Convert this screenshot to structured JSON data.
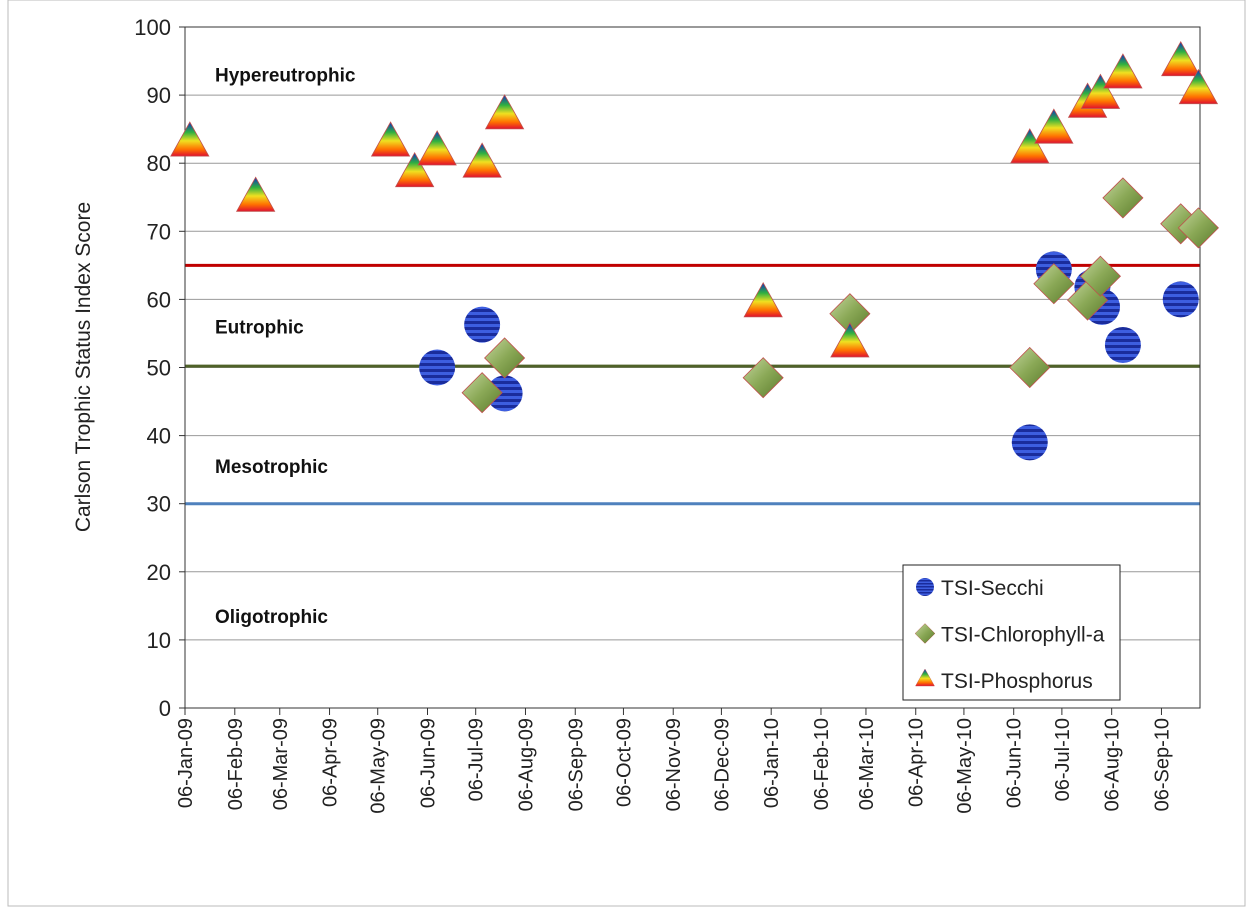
{
  "chart_data": {
    "type": "scatter",
    "y_label": "Carlson Trophic Status Index Score",
    "annotations": [
      {
        "text": "Hypereutrophic",
        "y": 93
      },
      {
        "text": "Eutrophic",
        "y": 56
      },
      {
        "text": "Mesotrophic",
        "y": 35.5
      },
      {
        "text": "Oligotrophic",
        "y": 13.5
      }
    ],
    "reference_lines": [
      {
        "value": 65,
        "color": "#c00000"
      },
      {
        "value": 50.2,
        "color": "#4f6228"
      },
      {
        "value": 30,
        "color": "#4f81bd"
      }
    ],
    "xlim": [
      "2009-01-06",
      "2010-09-30"
    ],
    "xticks": [
      {
        "value": "2009-01-06",
        "label": "06-Jan-09"
      },
      {
        "value": "2009-02-06",
        "label": "06-Feb-09"
      },
      {
        "value": "2009-03-06",
        "label": "06-Mar-09"
      },
      {
        "value": "2009-04-06",
        "label": "06-Apr-09"
      },
      {
        "value": "2009-05-06",
        "label": "06-May-09"
      },
      {
        "value": "2009-06-06",
        "label": "06-Jun-09"
      },
      {
        "value": "2009-07-06",
        "label": "06-Jul-09"
      },
      {
        "value": "2009-08-06",
        "label": "06-Aug-09"
      },
      {
        "value": "2009-09-06",
        "label": "06-Sep-09"
      },
      {
        "value": "2009-10-06",
        "label": "06-Oct-09"
      },
      {
        "value": "2009-11-06",
        "label": "06-Nov-09"
      },
      {
        "value": "2009-12-06",
        "label": "06-Dec-09"
      },
      {
        "value": "2010-01-06",
        "label": "06-Jan-10"
      },
      {
        "value": "2010-02-06",
        "label": "06-Feb-10"
      },
      {
        "value": "2010-03-06",
        "label": "06-Mar-10"
      },
      {
        "value": "2010-04-06",
        "label": "06-Apr-10"
      },
      {
        "value": "2010-05-06",
        "label": "06-May-10"
      },
      {
        "value": "2010-06-06",
        "label": "06-Jun-10"
      },
      {
        "value": "2010-07-06",
        "label": "06-Jul-10"
      },
      {
        "value": "2010-08-06",
        "label": "06-Aug-10"
      },
      {
        "value": "2010-09-06",
        "label": "06-Sep-10"
      }
    ],
    "ylim": [
      0,
      100
    ],
    "yticks": [
      0,
      10,
      20,
      30,
      40,
      50,
      60,
      70,
      80,
      90,
      100
    ],
    "grid": true,
    "legend": "bottom-right",
    "series": [
      {
        "name": "TSI-Secchi",
        "marker": "circle",
        "color": "#1f3bb3",
        "x": [
          "2009-06-12",
          "2009-07-10",
          "2009-07-24",
          "2010-06-16",
          "2010-07-01",
          "2010-07-25",
          "2010-07-31",
          "2010-08-13",
          "2010-09-18"
        ],
        "values": [
          50,
          56.3,
          46.2,
          39,
          64.4,
          61.8,
          58.9,
          53.3,
          60
        ]
      },
      {
        "name": "TSI-Chlorophyll-a",
        "marker": "diamond",
        "color": "#77933c",
        "x": [
          "2009-07-10",
          "2009-07-24",
          "2010-01-01",
          "2010-02-24",
          "2010-06-16",
          "2010-07-01",
          "2010-07-22",
          "2010-07-30",
          "2010-08-13",
          "2010-09-18",
          "2010-09-29"
        ],
        "values": [
          46.3,
          51.4,
          48.5,
          57.9,
          50,
          62.3,
          59.9,
          63.4,
          74.9,
          71.1,
          70.5
        ]
      },
      {
        "name": "TSI-Phosphorus",
        "marker": "triangle",
        "color": "#ff8000",
        "x": [
          "2009-01-09",
          "2009-02-19",
          "2009-05-14",
          "2009-05-29",
          "2009-06-12",
          "2009-07-10",
          "2009-07-24",
          "2010-01-01",
          "2010-02-24",
          "2010-06-16",
          "2010-07-01",
          "2010-07-22",
          "2010-07-30",
          "2010-08-13",
          "2010-09-18",
          "2010-09-29"
        ],
        "values": [
          82.8,
          74.7,
          82.8,
          78.3,
          81.5,
          79.7,
          86.8,
          59.2,
          53.3,
          81.8,
          84.7,
          88.5,
          89.8,
          92.8,
          94.6,
          90.5
        ]
      }
    ]
  }
}
